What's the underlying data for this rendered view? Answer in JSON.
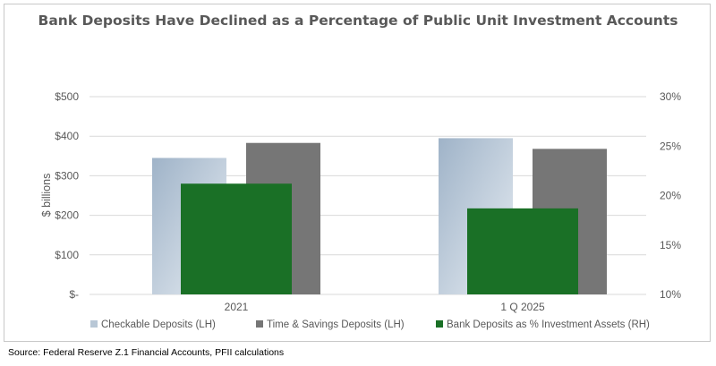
{
  "title": "Bank Deposits Have Declined as a Percentage of Public Unit Investment Accounts",
  "source": "Source:  Federal Reserve Z.1 Financial Accounts, PFII calculations",
  "chart_data": {
    "type": "bar",
    "title": "Bank Deposits Have Declined as a Percentage of Public Unit Investment Accounts",
    "categories": [
      "2021",
      "1 Q 2025"
    ],
    "series": [
      {
        "name": "Checkable Deposits (LH)",
        "axis": "left",
        "values": [
          345,
          395
        ],
        "color": "#9fb3c8"
      },
      {
        "name": "Time & Savings Deposits (LH)",
        "axis": "left",
        "values": [
          383,
          368
        ],
        "color": "#767676"
      },
      {
        "name": "Bank Deposits as % Investment Assets (RH)",
        "axis": "right",
        "values": [
          21.2,
          18.7
        ],
        "color": "#1a7026"
      }
    ],
    "ylabel": "$ billions",
    "ylim": [
      0,
      500
    ],
    "yticks": [
      "$-",
      "$100",
      "$200",
      "$300",
      "$400",
      "$500"
    ],
    "y2lim": [
      10,
      30
    ],
    "y2ticks": [
      "10%",
      "15%",
      "20%",
      "25%",
      "30%"
    ],
    "grid": true,
    "legend_position": "bottom"
  }
}
